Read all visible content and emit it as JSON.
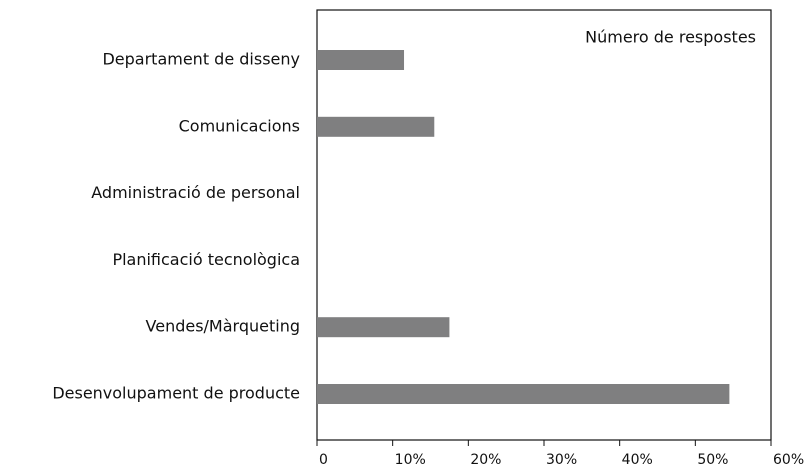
{
  "chart_data": {
    "type": "barh",
    "categories": [
      "Departament de disseny",
      "Comunicacions",
      "Administració de personal",
      "Planificació tecnològica",
      "Vendes/Màrqueting",
      "Desenvolupament de producte"
    ],
    "series": [
      {
        "name": "Número de respostes",
        "color": "#7f7f80",
        "values": [
          11.5,
          15.5,
          0,
          0,
          17.5,
          54.5
        ]
      }
    ],
    "xlim": [
      0,
      60
    ],
    "xticks": [
      0,
      {
        "value": 10,
        "label": "10%"
      },
      {
        "value": 20,
        "label": "20%"
      },
      {
        "value": 30,
        "label": "30%"
      },
      {
        "value": 40,
        "label": "40%"
      },
      {
        "value": 50,
        "label": "50%"
      },
      {
        "value": 60,
        "label": "60%"
      }
    ],
    "legend": "upper right"
  }
}
